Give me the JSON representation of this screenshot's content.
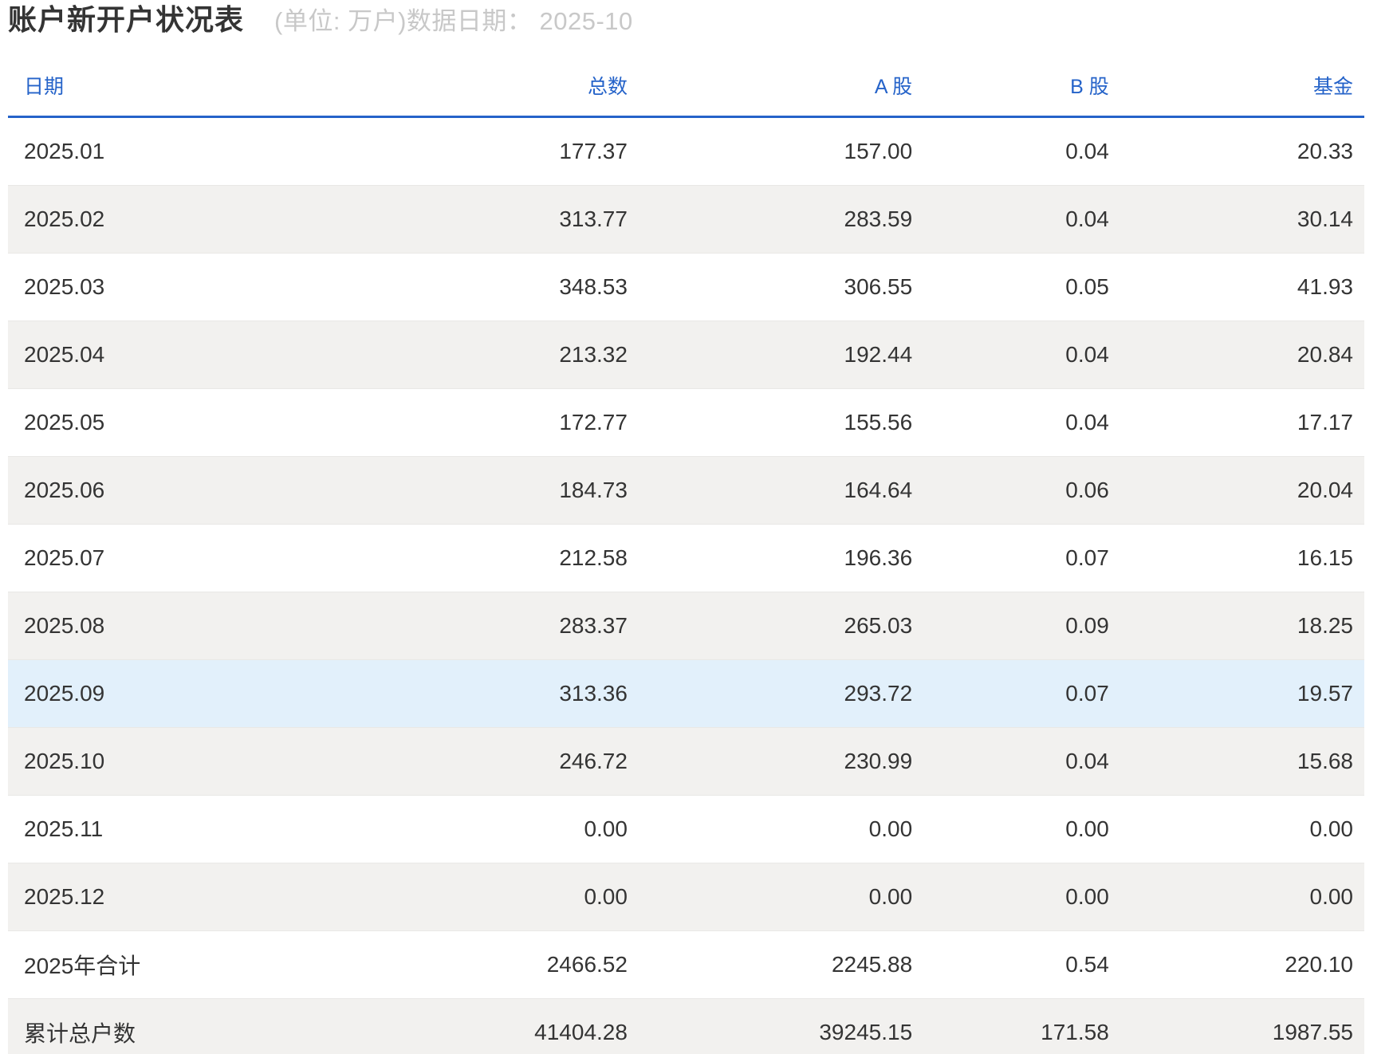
{
  "header": {
    "title": "账户新开户状况表",
    "subtitle": "(单位: 万户)数据日期： 2025-10"
  },
  "table": {
    "columns": [
      {
        "label": "日期"
      },
      {
        "label": "总数"
      },
      {
        "label": "A 股"
      },
      {
        "label": "B 股"
      },
      {
        "label": "基金"
      }
    ],
    "rows": [
      {
        "date": "2025.01",
        "total": "177.37",
        "a_share": "157.00",
        "b_share": "0.04",
        "fund": "20.33",
        "highlighted": false
      },
      {
        "date": "2025.02",
        "total": "313.77",
        "a_share": "283.59",
        "b_share": "0.04",
        "fund": "30.14",
        "highlighted": false
      },
      {
        "date": "2025.03",
        "total": "348.53",
        "a_share": "306.55",
        "b_share": "0.05",
        "fund": "41.93",
        "highlighted": false
      },
      {
        "date": "2025.04",
        "total": "213.32",
        "a_share": "192.44",
        "b_share": "0.04",
        "fund": "20.84",
        "highlighted": false
      },
      {
        "date": "2025.05",
        "total": "172.77",
        "a_share": "155.56",
        "b_share": "0.04",
        "fund": "17.17",
        "highlighted": false
      },
      {
        "date": "2025.06",
        "total": "184.73",
        "a_share": "164.64",
        "b_share": "0.06",
        "fund": "20.04",
        "highlighted": false
      },
      {
        "date": "2025.07",
        "total": "212.58",
        "a_share": "196.36",
        "b_share": "0.07",
        "fund": "16.15",
        "highlighted": false
      },
      {
        "date": "2025.08",
        "total": "283.37",
        "a_share": "265.03",
        "b_share": "0.09",
        "fund": "18.25",
        "highlighted": false
      },
      {
        "date": "2025.09",
        "total": "313.36",
        "a_share": "293.72",
        "b_share": "0.07",
        "fund": "19.57",
        "highlighted": true
      },
      {
        "date": "2025.10",
        "total": "246.72",
        "a_share": "230.99",
        "b_share": "0.04",
        "fund": "15.68",
        "highlighted": false
      },
      {
        "date": "2025.11",
        "total": "0.00",
        "a_share": "0.00",
        "b_share": "0.00",
        "fund": "0.00",
        "highlighted": false
      },
      {
        "date": "2025.12",
        "total": "0.00",
        "a_share": "0.00",
        "b_share": "0.00",
        "fund": "0.00",
        "highlighted": false
      },
      {
        "date": "2025年合计",
        "total": "2466.52",
        "a_share": "2245.88",
        "b_share": "0.54",
        "fund": "220.10",
        "highlighted": false
      },
      {
        "date": "累计总户数",
        "total": "41404.28",
        "a_share": "39245.15",
        "b_share": "171.58",
        "fund": "1987.55",
        "highlighted": false
      }
    ]
  },
  "colors": {
    "accent": "#2563c9",
    "text": "#343434",
    "muted": "#c8c8c8",
    "stripe": "#f2f1ef",
    "highlight": "#e2f0fb",
    "border": "#e9e8e6"
  }
}
